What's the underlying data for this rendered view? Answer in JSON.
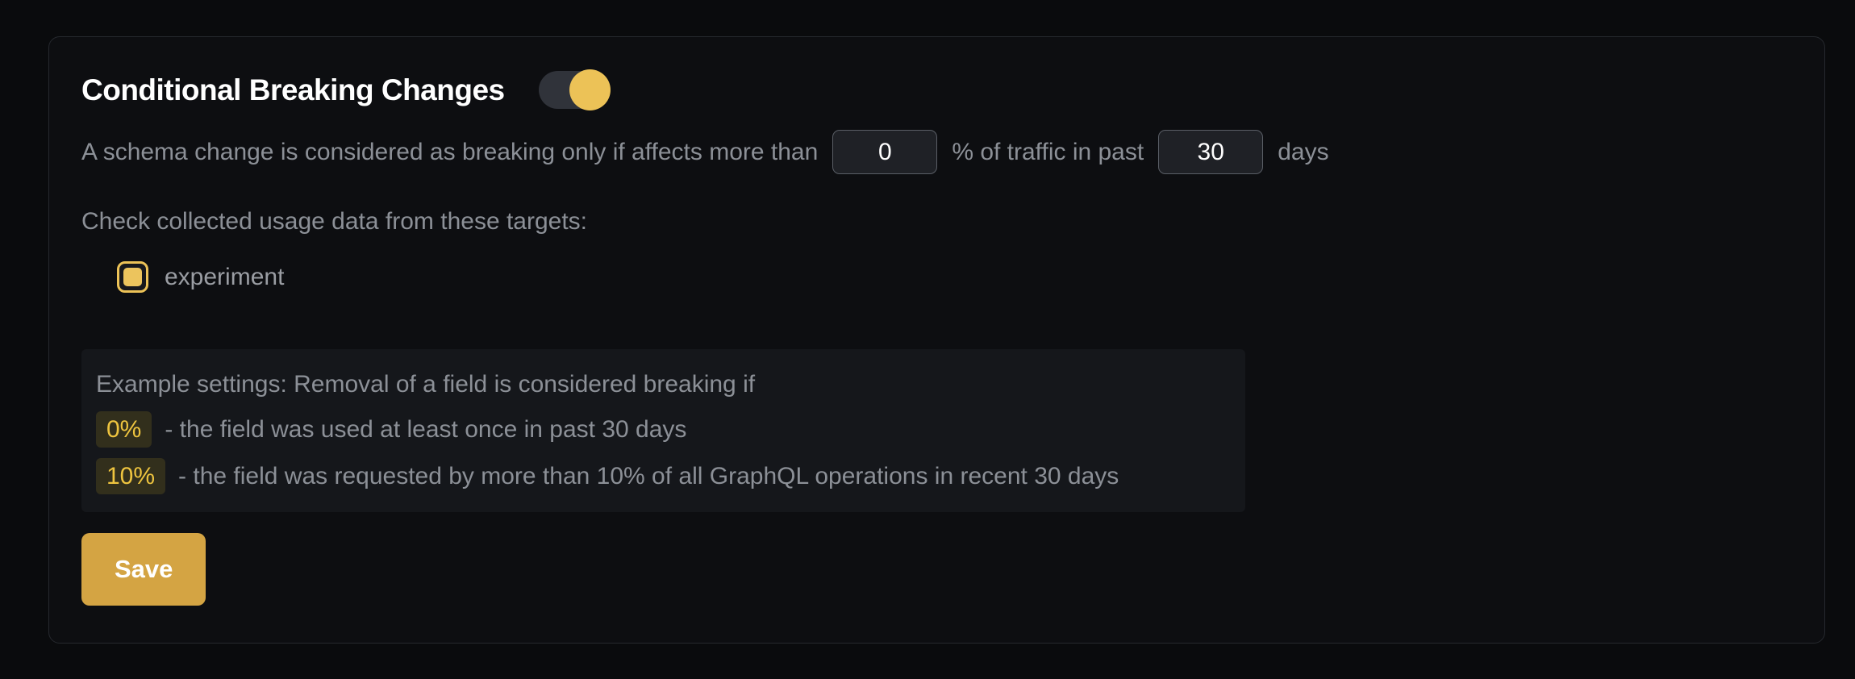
{
  "panel": {
    "title": "Conditional Breaking Changes",
    "toggle": {
      "label": "conditional-breaking-changes-enabled",
      "state": "on"
    },
    "threshold": {
      "text_before_percentage": "A schema change is considered as breaking only if affects more than",
      "percentage_value": "0",
      "text_between": "% of traffic in past",
      "days_value": "30",
      "text_after": "days"
    },
    "targets": {
      "label": "Check collected usage data from these targets:",
      "items": [
        {
          "label": "experiment",
          "checked": true
        }
      ]
    },
    "example": {
      "intro": "Example settings: Removal of a field is considered breaking if",
      "rules": [
        {
          "badge": "0%",
          "text": "- the field was used at least once in past 30 days"
        },
        {
          "badge": "10%",
          "text": "- the field was requested by more than 10% of all GraphQL operations in recent 30 days"
        }
      ]
    },
    "save_label": "Save"
  },
  "colors": {
    "accent_yellow": "#ecc257",
    "save_button_background": "#d4a443",
    "badge_text": "#eec43f",
    "badge_background": "#322f1c",
    "page_background": "#0a0b0d",
    "card_background": "#0d0e11",
    "card_border": "#26292e",
    "muted_text": "#8c9097",
    "input_background": "#1f2126",
    "input_border": "#5a5e66"
  }
}
